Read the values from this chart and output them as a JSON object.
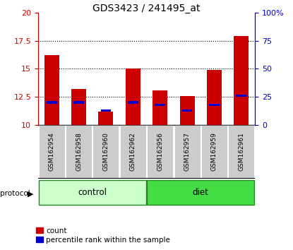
{
  "title": "GDS3423 / 241495_at",
  "samples": [
    "GSM162954",
    "GSM162958",
    "GSM162960",
    "GSM162962",
    "GSM162956",
    "GSM162957",
    "GSM162959",
    "GSM162961"
  ],
  "red_values": [
    16.2,
    13.2,
    11.2,
    15.0,
    13.1,
    12.6,
    14.9,
    17.9
  ],
  "blue_percentiles": [
    20,
    20,
    13,
    20,
    18,
    13,
    18,
    26
  ],
  "ylim_left": [
    10,
    20
  ],
  "ylim_right": [
    0,
    100
  ],
  "yticks_left": [
    10,
    12.5,
    15,
    17.5,
    20
  ],
  "yticks_right": [
    0,
    25,
    50,
    75,
    100
  ],
  "groups": [
    {
      "label": "control",
      "color": "#ccffcc"
    },
    {
      "label": "diet",
      "color": "#44dd44"
    }
  ],
  "group_label": "protocol",
  "red_color": "#cc0000",
  "blue_color": "#0000cc",
  "tick_color_left": "#cc0000",
  "tick_color_right": "#0000cc",
  "sample_bg": "#cccccc",
  "grid_dotted_at": [
    12.5,
    15.0,
    17.5
  ]
}
